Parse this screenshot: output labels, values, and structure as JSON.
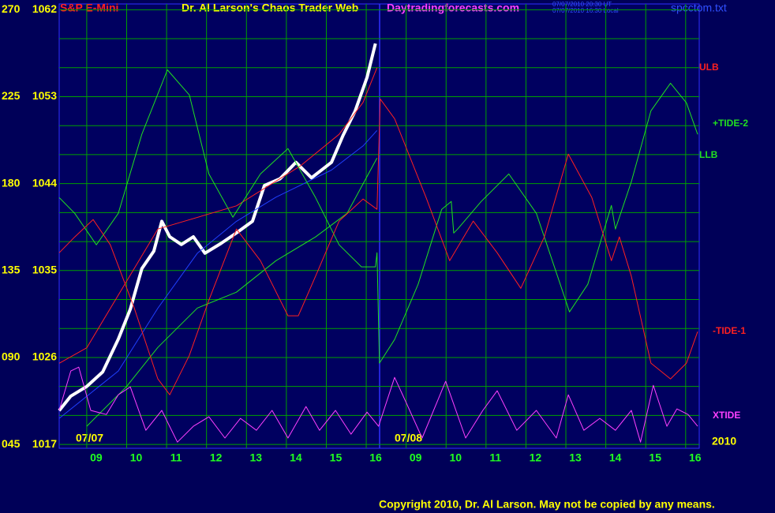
{
  "chart_data": {
    "type": "line",
    "instrument": "S&P E-Mini",
    "title": "Dr. Al Larson's Chaos Trader Web",
    "site": "Daytradingforecasts.com",
    "timestamps": [
      "07/07/2010 20:30 UT",
      "07/07/2010 16:30 Local"
    ],
    "file": "spcctom.txt",
    "dates": [
      "07/07",
      "07/08"
    ],
    "year": "2010",
    "copyright": "Copyright 2010, Dr. Al Larson. May not be copied by any means.",
    "grid": true,
    "xlim": [
      -0.69,
      15.34
    ],
    "xticks": [
      {
        "value": 0,
        "label": "09"
      },
      {
        "value": 1,
        "label": "10"
      },
      {
        "value": 2,
        "label": "11"
      },
      {
        "value": 3,
        "label": "12"
      },
      {
        "value": 4,
        "label": "13"
      },
      {
        "value": 5,
        "label": "14"
      },
      {
        "value": 6,
        "label": "15"
      },
      {
        "value": 7,
        "label": "16"
      },
      {
        "value": 8,
        "label": "09"
      },
      {
        "value": 9,
        "label": "10"
      },
      {
        "value": 10,
        "label": "11"
      },
      {
        "value": 11,
        "label": "12"
      },
      {
        "value": 12,
        "label": "13"
      },
      {
        "value": 13,
        "label": "14"
      },
      {
        "value": 14,
        "label": "15"
      },
      {
        "value": 15,
        "label": "16"
      }
    ],
    "ylim": [
      1016.6,
      1062.6
    ],
    "yticks": [
      1017,
      1026,
      1035,
      1044,
      1053,
      1062
    ],
    "ygrid": [
      1017,
      1020,
      1023,
      1026,
      1029,
      1032,
      1035,
      1038,
      1041,
      1044,
      1047,
      1050,
      1053,
      1056,
      1059,
      1062
    ],
    "y2lim": [
      43,
      273
    ],
    "y2ticks": [
      {
        "value": 45,
        "label": "045"
      },
      {
        "value": 90,
        "label": "090"
      },
      135,
      180,
      225,
      270
    ],
    "series": [
      {
        "color": "#ffffff",
        "width": 4,
        "x": [
          -0.69,
          -0.4,
          0,
          0.4,
          0.79,
          1.09,
          1.38,
          1.68,
          1.88,
          2.08,
          2.37,
          2.67,
          2.96,
          3.36,
          3.75,
          4.15,
          4.45,
          4.84,
          5.24,
          5.63,
          6.13,
          6.42,
          6.72,
          7.02,
          7.23
        ],
        "values": [
          1020.5,
          1022,
          1023,
          1024.5,
          1027.9,
          1031,
          1035.2,
          1037,
          1040.1,
          1038.5,
          1037.7,
          1038.5,
          1036.8,
          1037.8,
          1038.9,
          1040.1,
          1043.8,
          1044.5,
          1046.2,
          1044.6,
          1046.2,
          1049,
          1051.5,
          1055,
          1058.5
        ]
      },
      {
        "name": "ULB",
        "color": "#ff2020",
        "width": 1,
        "x": [
          -0.69,
          0,
          1.78,
          3.75,
          5.34,
          6.32,
          6.92,
          7.27
        ],
        "values": [
          1025.4,
          1027,
          1039.3,
          1041.7,
          1045.8,
          1049.1,
          1052.4,
          1056
        ]
      },
      {
        "color": "#2040ff",
        "width": 1,
        "x": [
          -0.69,
          0.79,
          1.78,
          2.77,
          3.75,
          4.74,
          6.13,
          6.92,
          7.27
        ],
        "values": [
          1019.7,
          1024.6,
          1031.1,
          1036.8,
          1040.1,
          1042.6,
          1045.4,
          1047.9,
          1049.5
        ]
      },
      {
        "name": "+TIDE-2",
        "color": "#20e020",
        "width": 1,
        "axis": "y2",
        "x": [
          -0.69,
          -0.3,
          0.24,
          0.79,
          1.38,
          2.02,
          2.57,
          3.06,
          3.66,
          4.35,
          5.04,
          5.73,
          6.32,
          6.88,
          7.23,
          7.27,
          7.33,
          7.71,
          8.3,
          8.89,
          9.13,
          9.19,
          9.29,
          9.88,
          10.57,
          11.26,
          11.86,
          12.09,
          12.55,
          13.14,
          13.24,
          13.64,
          14.13,
          14.62,
          15.02,
          15.3
        ],
        "values": [
          172.8,
          164.6,
          148.3,
          164.6,
          205.5,
          238.9,
          225.9,
          185,
          162.6,
          185,
          198.1,
          172.8,
          148.3,
          136.9,
          136.9,
          144.2,
          87.1,
          99.3,
          127.9,
          166.7,
          170.8,
          154.4,
          156.5,
          170.8,
          185,
          164.6,
          127.9,
          113.6,
          127.9,
          168.7,
          156.5,
          181,
          217.7,
          232,
          221.8,
          205.5
        ]
      },
      {
        "name": "LLB",
        "color": "#20e020",
        "width": 1,
        "axis": "y2",
        "x": [
          0,
          0.99,
          1.78,
          2.77,
          3.75,
          4.74,
          5.73,
          6.52,
          7.27
        ],
        "values": [
          54.4,
          74.8,
          95.2,
          115.6,
          123.8,
          140.1,
          152.4,
          164.6,
          193.2
        ]
      },
      {
        "name": "-TIDE-1",
        "color": "#ff2020",
        "width": 1,
        "axis": "y2",
        "x": [
          -0.69,
          -0.3,
          0.16,
          0.59,
          1.19,
          1.78,
          2.08,
          2.57,
          3.06,
          3.75,
          4.35,
          5.04,
          5.3,
          5.73,
          6.32,
          6.92,
          7.27,
          7.35,
          7.71,
          8.5,
          9.09,
          9.68,
          10.28,
          10.87,
          11.46,
          12.06,
          12.65,
          13.14,
          13.34,
          13.64,
          14.13,
          14.62,
          15.02,
          15.3
        ],
        "values": [
          144.2,
          152.4,
          161.4,
          148.3,
          115.6,
          78.9,
          70.7,
          91.1,
          119.7,
          156.5,
          140.1,
          111.6,
          111.6,
          132,
          160.6,
          172,
          166.7,
          223.8,
          213.6,
          172.8,
          140.1,
          160.6,
          144.2,
          125.8,
          152.4,
          195.3,
          172.8,
          140.1,
          152.4,
          132,
          87.1,
          78.9,
          87.1,
          103.4
        ]
      },
      {
        "name": "XTIDE",
        "color": "#ff40ff",
        "width": 1,
        "axis": "y2",
        "x": [
          -0.69,
          -0.4,
          -0.2,
          0.1,
          0.49,
          0.79,
          1.09,
          1.48,
          1.88,
          2.27,
          2.67,
          3.06,
          3.46,
          3.85,
          4.25,
          4.64,
          5.04,
          5.49,
          5.83,
          6.23,
          6.62,
          7.02,
          7.31,
          7.71,
          8,
          8.4,
          8.99,
          9.49,
          9.92,
          10.28,
          10.77,
          11.26,
          11.76,
          12.06,
          12.45,
          12.85,
          13.24,
          13.64,
          13.87,
          14.19,
          14.53,
          14.78,
          15.06,
          15.3
        ],
        "values": [
          62.6,
          83,
          85,
          62.6,
          60.5,
          70.7,
          74.8,
          52.3,
          62.6,
          46.2,
          54.4,
          59.3,
          48.3,
          58.5,
          52.3,
          62.6,
          48.3,
          64.6,
          52.3,
          62.6,
          50.3,
          61.7,
          54.4,
          79.7,
          66.6,
          48.3,
          77.7,
          48.3,
          62.6,
          72.8,
          52.3,
          62.6,
          48.3,
          70.7,
          52.3,
          58.5,
          52.3,
          62.6,
          46.2,
          75.6,
          54.4,
          63.4,
          60.5,
          54.4
        ]
      }
    ]
  }
}
